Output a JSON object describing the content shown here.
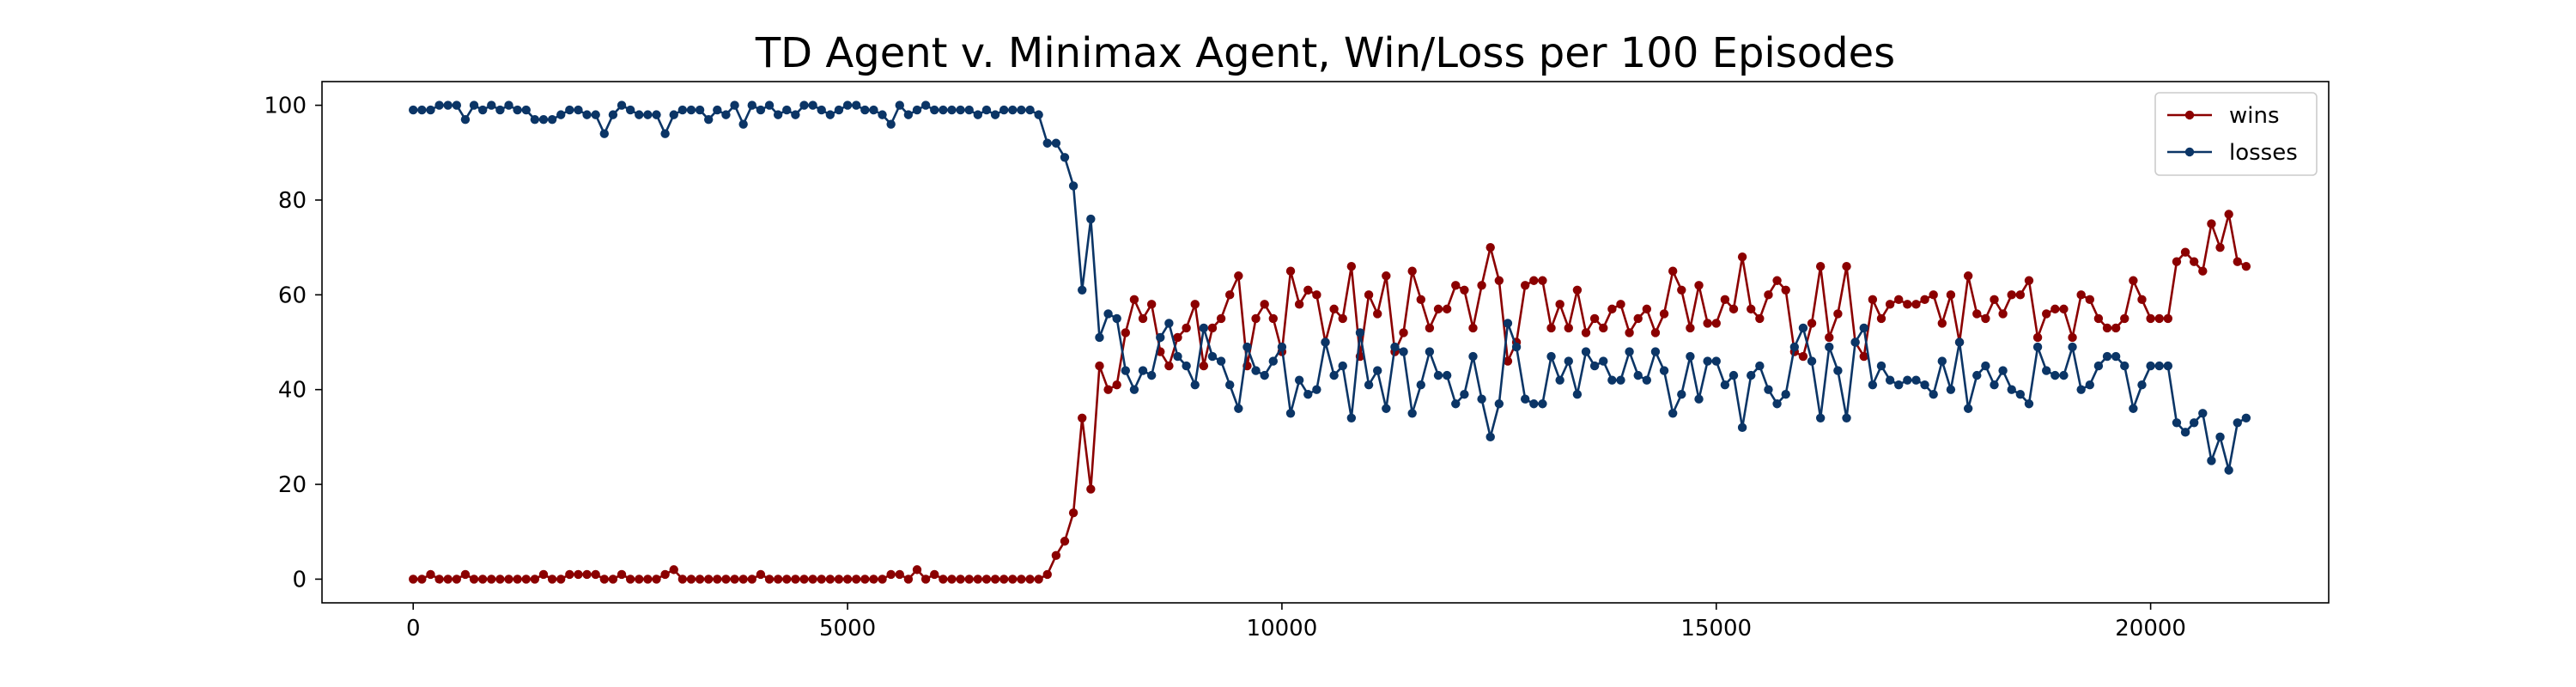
{
  "chart_data": {
    "type": "line",
    "title": "TD Agent v. Minimax Agent, Win/Loss per 100 Episodes",
    "xlabel": "",
    "ylabel": "",
    "xlim": [
      -1050,
      22050
    ],
    "ylim": [
      -5,
      105
    ],
    "xticks": [
      0,
      5000,
      10000,
      15000,
      20000
    ],
    "xtick_labels": [
      "0",
      "5000",
      "10000",
      "15000",
      "20000"
    ],
    "yticks": [
      0,
      20,
      40,
      60,
      80,
      100
    ],
    "ytick_labels": [
      "0",
      "20",
      "40",
      "60",
      "80",
      "100"
    ],
    "grid": false,
    "legend_position": "top-right",
    "x_start": 0,
    "x_step": 100,
    "series": [
      {
        "name": "wins",
        "color": "#8b0000",
        "values": [
          0,
          0,
          1,
          0,
          0,
          0,
          1,
          0,
          0,
          0,
          0,
          0,
          0,
          0,
          0,
          1,
          0,
          0,
          1,
          1,
          1,
          1,
          0,
          0,
          1,
          0,
          0,
          0,
          0,
          1,
          2,
          0,
          0,
          0,
          0,
          0,
          0,
          0,
          0,
          0,
          1,
          0,
          0,
          0,
          0,
          0,
          0,
          0,
          0,
          0,
          0,
          0,
          0,
          0,
          0,
          1,
          1,
          0,
          2,
          0,
          1,
          0,
          0,
          0,
          0,
          0,
          0,
          0,
          0,
          0,
          0,
          0,
          0,
          1,
          5,
          8,
          14,
          34,
          19,
          45,
          40,
          41,
          52,
          59,
          55,
          58,
          48,
          45,
          51,
          53,
          58,
          45,
          53,
          55,
          60,
          64,
          45,
          55,
          58,
          55,
          48,
          65,
          58,
          61,
          60,
          50,
          57,
          55,
          66,
          47,
          60,
          56,
          64,
          48,
          52,
          65,
          59,
          53,
          57,
          57,
          62,
          61,
          53,
          62,
          70,
          63,
          46,
          50,
          62,
          63,
          63,
          53,
          58,
          53,
          61,
          52,
          55,
          53,
          57,
          58,
          52,
          55,
          57,
          52,
          56,
          65,
          61,
          53,
          62,
          54,
          54,
          59,
          57,
          68,
          57,
          55,
          60,
          63,
          61,
          48,
          47,
          54,
          66,
          51,
          56,
          66,
          50,
          47,
          59,
          55,
          58,
          59,
          58,
          58,
          59,
          60,
          54,
          60,
          50,
          64,
          56,
          55,
          59,
          56,
          60,
          60,
          63,
          51,
          56,
          57,
          57,
          51,
          60,
          59,
          55,
          53,
          53,
          55,
          63,
          59,
          55,
          55,
          55,
          67,
          69,
          67,
          65,
          75,
          70,
          77,
          67,
          66
        ]
      },
      {
        "name": "losses",
        "color": "#0b3566",
        "values": [
          99,
          99,
          99,
          100,
          100,
          100,
          97,
          100,
          99,
          100,
          99,
          100,
          99,
          99,
          97,
          97,
          97,
          98,
          99,
          99,
          98,
          98,
          94,
          98,
          100,
          99,
          98,
          98,
          98,
          94,
          98,
          99,
          99,
          99,
          97,
          99,
          98,
          100,
          96,
          100,
          99,
          100,
          98,
          99,
          98,
          100,
          100,
          99,
          98,
          99,
          100,
          100,
          99,
          99,
          98,
          96,
          100,
          98,
          99,
          100,
          99,
          99,
          99,
          99,
          99,
          98,
          99,
          98,
          99,
          99,
          99,
          99,
          98,
          92,
          92,
          89,
          83,
          61,
          76,
          51,
          56,
          55,
          44,
          40,
          44,
          43,
          51,
          54,
          47,
          45,
          41,
          53,
          47,
          46,
          41,
          36,
          49,
          44,
          43,
          46,
          49,
          35,
          42,
          39,
          40,
          50,
          43,
          45,
          34,
          52,
          41,
          44,
          36,
          49,
          48,
          35,
          41,
          48,
          43,
          43,
          37,
          39,
          47,
          38,
          30,
          37,
          54,
          49,
          38,
          37,
          37,
          47,
          42,
          46,
          39,
          48,
          45,
          46,
          42,
          42,
          48,
          43,
          42,
          48,
          44,
          35,
          39,
          47,
          38,
          46,
          46,
          41,
          43,
          32,
          43,
          45,
          40,
          37,
          39,
          49,
          53,
          46,
          34,
          49,
          44,
          34,
          50,
          53,
          41,
          45,
          42,
          41,
          42,
          42,
          41,
          39,
          46,
          40,
          50,
          36,
          43,
          45,
          41,
          44,
          40,
          39,
          37,
          49,
          44,
          43,
          43,
          49,
          40,
          41,
          45,
          47,
          47,
          45,
          36,
          41,
          45,
          45,
          45,
          33,
          31,
          33,
          35,
          25,
          30,
          23,
          33,
          34
        ]
      }
    ]
  }
}
